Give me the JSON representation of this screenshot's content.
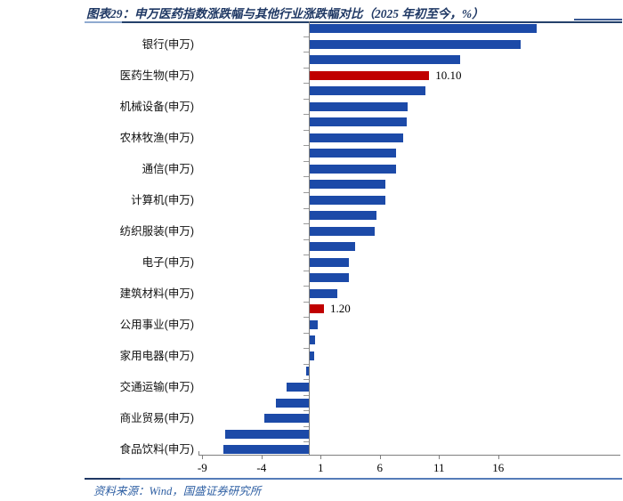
{
  "figure": {
    "caption_prefix": "图表29：",
    "caption_title": "申万医药指数涨跌幅与其他行业涨跌幅对比（2025 年初至今，%）",
    "source": "资料来源：Wind，国盛证券研究所"
  },
  "colors": {
    "bar_blue": "#1C4AA8",
    "bar_red": "#C00000",
    "caption_navy": "#1F3864",
    "source_blue": "#2E5FA3",
    "axis_gray": "#7F7F7F"
  },
  "chart_data": {
    "type": "bar",
    "orientation": "horizontal",
    "title": "申万医药指数涨跌幅与其他行业涨跌幅对比（2025 年初至今，%）",
    "xlabel": "",
    "ylabel": "",
    "x_ticks": [
      -9,
      -4,
      1,
      6,
      11,
      16
    ],
    "xlim": [
      -9.3,
      26.3
    ],
    "grid": false,
    "legend": "none",
    "highlight_color": "#C00000",
    "bar_color": "#1C4AA8",
    "bars": [
      {
        "label": "",
        "value": 19.2,
        "highlight": false,
        "data_label": ""
      },
      {
        "label": "银行(申万)",
        "value": 17.8,
        "highlight": false,
        "data_label": ""
      },
      {
        "label": "",
        "value": 12.7,
        "highlight": false,
        "data_label": ""
      },
      {
        "label": "医药生物(申万)",
        "value": 10.1,
        "highlight": true,
        "data_label": "10.10"
      },
      {
        "label": "",
        "value": 9.8,
        "highlight": false,
        "data_label": ""
      },
      {
        "label": "机械设备(申万)",
        "value": 8.3,
        "highlight": false,
        "data_label": ""
      },
      {
        "label": "",
        "value": 8.2,
        "highlight": false,
        "data_label": ""
      },
      {
        "label": "农林牧渔(申万)",
        "value": 7.9,
        "highlight": false,
        "data_label": ""
      },
      {
        "label": "",
        "value": 7.3,
        "highlight": false,
        "data_label": ""
      },
      {
        "label": "通信(申万)",
        "value": 7.3,
        "highlight": false,
        "data_label": ""
      },
      {
        "label": "",
        "value": 6.4,
        "highlight": false,
        "data_label": ""
      },
      {
        "label": "计算机(申万)",
        "value": 6.4,
        "highlight": false,
        "data_label": ""
      },
      {
        "label": "",
        "value": 5.6,
        "highlight": false,
        "data_label": ""
      },
      {
        "label": "纺织服装(申万)",
        "value": 5.5,
        "highlight": false,
        "data_label": ""
      },
      {
        "label": "",
        "value": 3.8,
        "highlight": false,
        "data_label": ""
      },
      {
        "label": "电子(申万)",
        "value": 3.3,
        "highlight": false,
        "data_label": ""
      },
      {
        "label": "",
        "value": 3.3,
        "highlight": false,
        "data_label": ""
      },
      {
        "label": "建筑材料(申万)",
        "value": 2.3,
        "highlight": false,
        "data_label": ""
      },
      {
        "label": "",
        "value": 1.2,
        "highlight": true,
        "data_label": "1.20"
      },
      {
        "label": "公用事业(申万)",
        "value": 0.7,
        "highlight": false,
        "data_label": ""
      },
      {
        "label": "",
        "value": 0.45,
        "highlight": false,
        "data_label": ""
      },
      {
        "label": "家用电器(申万)",
        "value": 0.4,
        "highlight": false,
        "data_label": ""
      },
      {
        "label": "",
        "value": -0.2,
        "highlight": false,
        "data_label": ""
      },
      {
        "label": "交通运输(申万)",
        "value": -1.9,
        "highlight": false,
        "data_label": ""
      },
      {
        "label": "",
        "value": -2.8,
        "highlight": false,
        "data_label": ""
      },
      {
        "label": "商业贸易(申万)",
        "value": -3.8,
        "highlight": false,
        "data_label": ""
      },
      {
        "label": "",
        "value": -7.1,
        "highlight": false,
        "data_label": ""
      },
      {
        "label": "食品饮料(申万)",
        "value": -7.2,
        "highlight": false,
        "data_label": ""
      }
    ]
  }
}
